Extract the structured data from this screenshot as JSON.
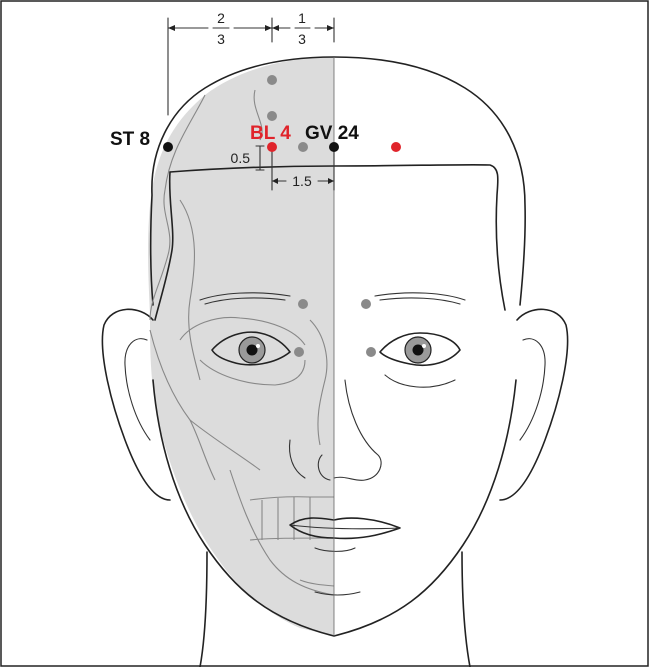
{
  "points": {
    "st8": {
      "label": "ST 8",
      "color": "#111111"
    },
    "bl4": {
      "label": "BL 4",
      "color": "#e0242b"
    },
    "gv24": {
      "label": "GV 24",
      "color": "#111111"
    },
    "gray_dot_color": "#8a8a8a",
    "red_dot_color": "#e0242b"
  },
  "dimensions": {
    "top_left_num": "2",
    "top_left_den": "3",
    "top_right_num": "1",
    "top_right_den": "3",
    "vertical_offset": "0.5",
    "horizontal_offset": "1.5"
  },
  "colors": {
    "skull_fill": "#dcdcdc",
    "outline": "#222222",
    "bone_line": "#888888"
  }
}
